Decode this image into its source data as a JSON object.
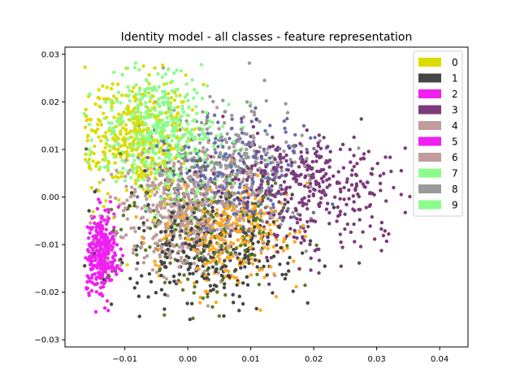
{
  "chart_data": {
    "type": "scatter",
    "title": "Identity model - all classes - feature representation",
    "xlabel": "",
    "ylabel": "",
    "xlim": [
      -0.0195,
      0.0445
    ],
    "ylim": [
      -0.0315,
      0.0315
    ],
    "x_ticks": [
      -0.01,
      0.0,
      0.01,
      0.02,
      0.03,
      0.04
    ],
    "x_tick_labels": [
      "−0.01",
      "0.00",
      "0.01",
      "0.02",
      "0.03",
      "0.04"
    ],
    "y_ticks": [
      -0.03,
      -0.02,
      -0.01,
      0.0,
      0.01,
      0.02,
      0.03
    ],
    "y_tick_labels": [
      "−0.03",
      "−0.02",
      "−0.01",
      "0.00",
      "0.01",
      "0.02",
      "0.03"
    ],
    "grid": false,
    "legend_position": "top-right",
    "series": [
      {
        "name": "0",
        "color": "#dcdc00",
        "center": [
          -0.008,
          0.012
        ],
        "spread": [
          0.0045,
          0.0065
        ],
        "count": 380
      },
      {
        "name": "1",
        "color": "#454545",
        "center": [
          0.003,
          -0.011
        ],
        "spread": [
          0.0065,
          0.0055
        ],
        "count": 300
      },
      {
        "name": "2",
        "color": "#f020f0",
        "center": [
          -0.014,
          -0.011
        ],
        "spread": [
          0.0012,
          0.0045
        ],
        "count": 140
      },
      {
        "name": "3",
        "color": "#7b3b7b",
        "center": [
          0.019,
          0.002
        ],
        "spread": [
          0.0075,
          0.0065
        ],
        "count": 400
      },
      {
        "name": "4",
        "color": "#c09c9c",
        "center": [
          0.0,
          -0.002
        ],
        "spread": [
          0.0055,
          0.0065
        ],
        "count": 260
      },
      {
        "name": "5",
        "color": "#f020f0",
        "center": [
          -0.0135,
          -0.012
        ],
        "spread": [
          0.0012,
          0.004
        ],
        "count": 160
      },
      {
        "name": "6",
        "color": "#c09c9c",
        "center": [
          -0.001,
          -0.004
        ],
        "spread": [
          0.0055,
          0.006
        ],
        "count": 220
      },
      {
        "name": "7",
        "color": "#8cfc8c",
        "center": [
          -0.005,
          0.016
        ],
        "spread": [
          0.004,
          0.0055
        ],
        "count": 280
      },
      {
        "name": "8",
        "color": "#9a9a9a",
        "center": [
          0.006,
          0.007
        ],
        "spread": [
          0.0065,
          0.0065
        ],
        "count": 260
      },
      {
        "name": "9",
        "color": "#8cfc8c",
        "center": [
          -0.003,
          0.01
        ],
        "spread": [
          0.005,
          0.006
        ],
        "count": 220
      }
    ],
    "extra_colors": [
      {
        "color": "#ffaa22",
        "center": [
          0.007,
          -0.008
        ],
        "spread": [
          0.005,
          0.0055
        ],
        "count": 300
      },
      {
        "color": "#6a6ea8",
        "center": [
          0.007,
          0.004
        ],
        "spread": [
          0.0065,
          0.0065
        ],
        "count": 260
      },
      {
        "color": "#5a7a2a",
        "center": [
          0.003,
          -0.005
        ],
        "spread": [
          0.006,
          0.0065
        ],
        "count": 220
      }
    ]
  }
}
